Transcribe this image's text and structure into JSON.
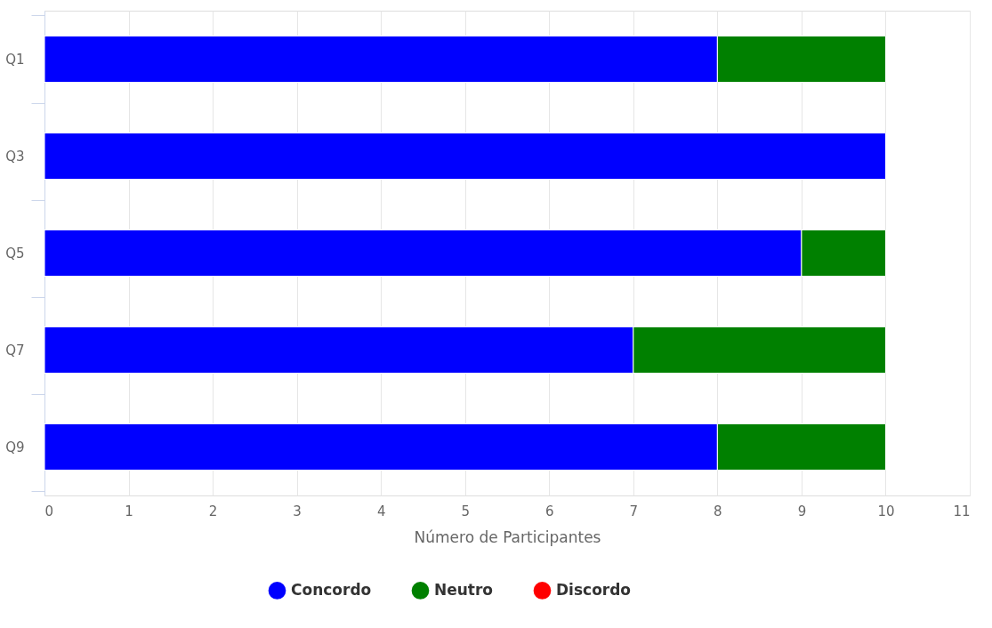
{
  "chart_data": {
    "type": "bar",
    "orientation": "horizontal",
    "stacked": true,
    "categories": [
      "Q1",
      "Q3",
      "Q5",
      "Q7",
      "Q9"
    ],
    "series": [
      {
        "name": "Concordo",
        "color": "#0000ff",
        "values": [
          8,
          10,
          9,
          7,
          8
        ]
      },
      {
        "name": "Neutro",
        "color": "#008000",
        "values": [
          2,
          0,
          1,
          3,
          2
        ]
      },
      {
        "name": "Discordo",
        "color": "#ff0000",
        "values": [
          0,
          0,
          0,
          0,
          0
        ]
      }
    ],
    "xlabel": "Número de Participantes",
    "xlim": [
      0,
      11
    ],
    "xticks": [
      0,
      1,
      2,
      3,
      4,
      5,
      6,
      7,
      8,
      9,
      10,
      11
    ],
    "grid": "x",
    "legend": "bottom"
  }
}
